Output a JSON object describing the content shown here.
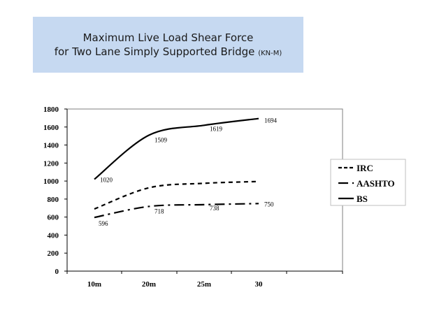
{
  "title_line1": "Maximum Live Load Shear Force",
  "title_line2": "for Two Lane Simply Supported  Bridge",
  "title_unit": "(KN-M)",
  "chart_data": {
    "type": "line",
    "categories": [
      "10m",
      "20m",
      "25m",
      "30"
    ],
    "ylim": [
      0,
      1800
    ],
    "yticks": [
      "0",
      "200",
      "400",
      "600",
      "800",
      "1000",
      "1200",
      "1400",
      "1600",
      "1800"
    ],
    "grid": false,
    "legend_position": "right",
    "series": [
      {
        "name": "IRC",
        "values": [
          690,
          925,
          975,
          995
        ],
        "style": "dash",
        "labels": [
          "",
          "",
          "",
          ""
        ]
      },
      {
        "name": "AASHTO",
        "values": [
          596,
          718,
          738,
          750
        ],
        "style": "dashdot",
        "labels": [
          "596",
          "718",
          "738",
          "750"
        ]
      },
      {
        "name": "BS",
        "values": [
          1020,
          1509,
          1619,
          1694
        ],
        "style": "solid",
        "labels": [
          "1020",
          "1509",
          "1619",
          "1694"
        ]
      }
    ]
  }
}
